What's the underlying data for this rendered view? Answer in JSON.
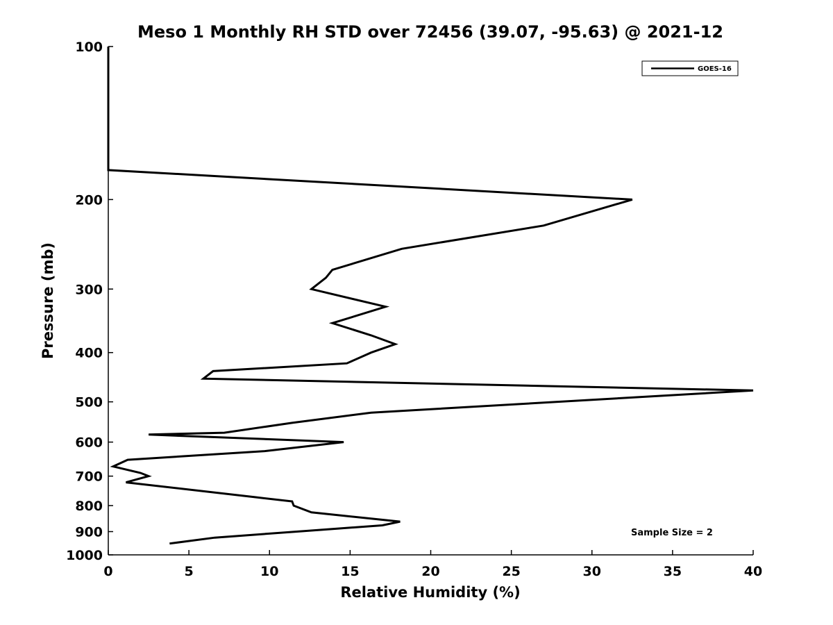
{
  "chart_data": {
    "type": "line",
    "title": "Meso 1 Monthly RH STD over 72456 (39.07, -95.63) @ 2021-12",
    "xlabel": "Relative Humidity (%)",
    "ylabel": "Pressure (mb)",
    "xlim": [
      0,
      40
    ],
    "ylim": [
      100,
      1000
    ],
    "y_scale": "log",
    "y_reversed": true,
    "grid": false,
    "legend_position": "top-right",
    "x_ticks": [
      "0",
      "5",
      "10",
      "15",
      "20",
      "25",
      "30",
      "35",
      "40"
    ],
    "y_ticks": [
      "100",
      "200",
      "300",
      "400",
      "500",
      "600",
      "700",
      "800",
      "900",
      "1000"
    ],
    "annotation": "Sample Size = 2",
    "series": [
      {
        "name": "GOES-16",
        "color": "#000000",
        "points": [
          [
            0,
            100
          ],
          [
            0,
            175
          ],
          [
            32.5,
            200
          ],
          [
            27.0,
            225
          ],
          [
            18.2,
            250
          ],
          [
            13.9,
            275
          ],
          [
            13.5,
            285
          ],
          [
            12.6,
            300
          ],
          [
            17.2,
            325
          ],
          [
            13.9,
            350
          ],
          [
            16.3,
            370
          ],
          [
            17.8,
            385
          ],
          [
            16.3,
            400
          ],
          [
            14.8,
            420
          ],
          [
            6.5,
            435
          ],
          [
            5.9,
            450
          ],
          [
            40.0,
            475
          ],
          [
            16.3,
            525
          ],
          [
            11.4,
            550
          ],
          [
            7.2,
            575
          ],
          [
            2.5,
            580
          ],
          [
            14.6,
            600
          ],
          [
            9.7,
            625
          ],
          [
            1.2,
            650
          ],
          [
            0.3,
            670
          ],
          [
            2.0,
            690
          ],
          [
            2.5,
            700
          ],
          [
            1.1,
            720
          ],
          [
            9.1,
            770
          ],
          [
            11.4,
            785
          ],
          [
            11.5,
            800
          ],
          [
            12.6,
            825
          ],
          [
            16.5,
            850
          ],
          [
            18.1,
            860
          ],
          [
            17.0,
            875
          ],
          [
            11.7,
            900
          ],
          [
            6.6,
            925
          ],
          [
            3.8,
            950
          ]
        ]
      }
    ]
  }
}
